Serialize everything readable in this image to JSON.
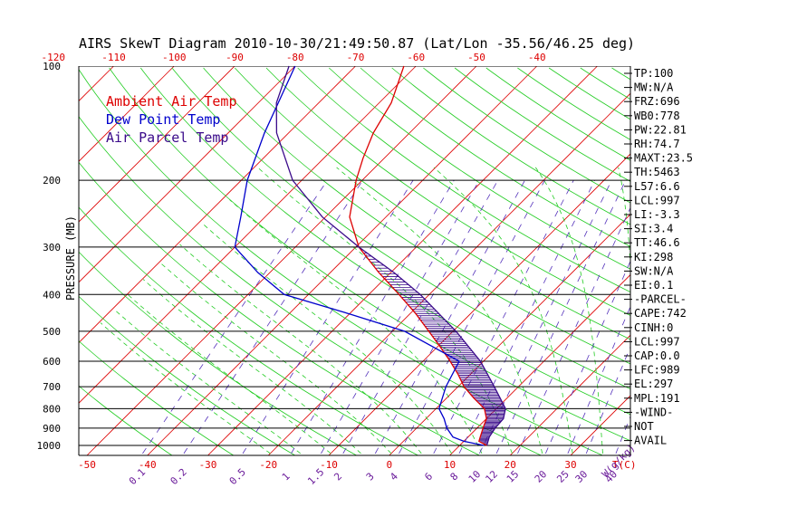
{
  "chart_data": {
    "type": "line",
    "title": "AIRS SkewT Diagram 2010-10-30/21:49:50.87 (Lat/Lon -35.56/46.25 deg)",
    "ylabel": "PRESSURE (MB)",
    "temp_unit_label": "T(C)",
    "mixing_ratio_unit_label": "W(g/kg)",
    "pressure_ticks": [
      100,
      200,
      300,
      400,
      500,
      600,
      700,
      800,
      900,
      1000
    ],
    "bottom_temp_ticks": [
      -50,
      -40,
      -30,
      -20,
      -10,
      0,
      10,
      20,
      30
    ],
    "top_temp_ticks": [
      -120,
      -110,
      -100,
      -90,
      -80,
      -70,
      -60,
      -50,
      -40
    ],
    "mixing_ratio_ticks": [
      "0.1",
      "0.2",
      "0.5",
      "1",
      "1.5",
      "2",
      "3",
      "4",
      "6",
      "8",
      "10",
      "12",
      "15",
      "20",
      "25",
      "30",
      "40"
    ],
    "legend": [
      {
        "label": "Ambient Air Temp",
        "color": "#dd0000"
      },
      {
        "label": "Dew Point Temp",
        "color": "#0000cc"
      },
      {
        "label": "Air Parcel Temp",
        "color": "#3a0a8a"
      }
    ],
    "series": [
      {
        "name": "Ambient Air Temp",
        "color": "#dd0000",
        "points": [
          [
            1000,
            14.5
          ],
          [
            975,
            12.5
          ],
          [
            950,
            12.0
          ],
          [
            900,
            11.0
          ],
          [
            850,
            10.0
          ],
          [
            800,
            8.0
          ],
          [
            750,
            4.5
          ],
          [
            700,
            1.0
          ],
          [
            650,
            -2.0
          ],
          [
            600,
            -5.5
          ],
          [
            550,
            -9.5
          ],
          [
            500,
            -14.0
          ],
          [
            450,
            -19.0
          ],
          [
            400,
            -25.0
          ],
          [
            350,
            -32.0
          ],
          [
            300,
            -39.5
          ],
          [
            250,
            -46.0
          ],
          [
            200,
            -51.0
          ],
          [
            175,
            -53.5
          ],
          [
            150,
            -56.0
          ],
          [
            125,
            -58.0
          ],
          [
            100,
            -62.0
          ]
        ]
      },
      {
        "name": "Dew Point Temp",
        "color": "#0000cc",
        "points": [
          [
            1000,
            14.0
          ],
          [
            975,
            10.0
          ],
          [
            950,
            7.5
          ],
          [
            900,
            5.0
          ],
          [
            850,
            3.0
          ],
          [
            800,
            0.5
          ],
          [
            700,
            -2.0
          ],
          [
            600,
            -4.0
          ],
          [
            500,
            -18.0
          ],
          [
            450,
            -30.0
          ],
          [
            400,
            -44.0
          ],
          [
            350,
            -52.0
          ],
          [
            300,
            -60.0
          ],
          [
            250,
            -64.0
          ],
          [
            200,
            -69.0
          ],
          [
            150,
            -74.0
          ],
          [
            100,
            -80.0
          ]
        ]
      },
      {
        "name": "Air Parcel Temp",
        "color": "#3a0a8a",
        "points": [
          [
            1000,
            14.5
          ],
          [
            950,
            13.5
          ],
          [
            900,
            13.0
          ],
          [
            850,
            12.8
          ],
          [
            800,
            11.5
          ],
          [
            700,
            6.0
          ],
          [
            600,
            -0.5
          ],
          [
            500,
            -9.5
          ],
          [
            400,
            -21.5
          ],
          [
            350,
            -29.5
          ],
          [
            300,
            -39.5
          ],
          [
            250,
            -50.5
          ],
          [
            200,
            -61.5
          ],
          [
            150,
            -72.0
          ],
          [
            125,
            -77.0
          ],
          [
            100,
            -81.0
          ]
        ]
      }
    ],
    "shading": "hatched area between Air Parcel Temp and Ambient Air Temp from 989 to 297 mb"
  },
  "indices": [
    "TP:100",
    "MW:N/A",
    "FRZ:696",
    "WB0:778",
    "PW:22.81",
    "RH:74.7",
    "MAXT:23.5",
    "TH:5463",
    "L57:6.6",
    "LCL:997",
    "LI:-3.3",
    "SI:3.4",
    "TT:46.6",
    "KI:298",
    "SW:N/A",
    "EI:0.1",
    "-PARCEL-",
    "CAPE:742",
    "CINH:0",
    "LCL:997",
    "CAP:0.0",
    "LFC:989",
    "EL:297",
    "MPL:191",
    "-WIND-",
    "NOT",
    "AVAIL"
  ],
  "colors": {
    "isotherm": "#dd0000",
    "dry_adiabat": "#22cc22",
    "moist_adiabat": "#22cc22",
    "mixing_ratio": "#5533bb",
    "isobar": "#000000"
  }
}
